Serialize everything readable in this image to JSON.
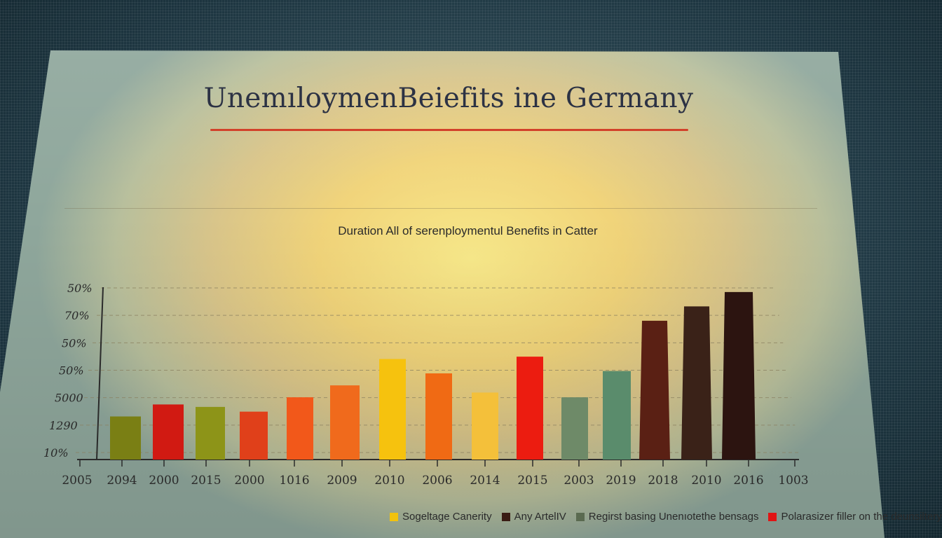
{
  "chart_data": {
    "type": "bar",
    "title": "UnemıloymenBeiefits ine Germany",
    "subtitle": "Duration All of serenploymentul Benefits in Catter",
    "y_tick_labels": [
      "50%",
      "70%",
      "50%",
      "50%",
      "5000",
      "1290",
      "10%"
    ],
    "x_axis_labels": [
      "2005",
      "2094",
      "2000",
      "2015",
      "2000",
      "1016",
      "2009",
      "2010",
      "2006",
      "2014",
      "2015",
      "2003",
      "2019",
      "2018",
      "2010",
      "2016",
      "1003"
    ],
    "categories": [
      "2094",
      "2000",
      "2015",
      "2000",
      "1016",
      "2009",
      "2010",
      "2006",
      "2014",
      "2015",
      "2003",
      "2019",
      "2018",
      "2010",
      "2016"
    ],
    "values": [
      18,
      23,
      22,
      20,
      26,
      31,
      42,
      36,
      28,
      43,
      26,
      37,
      58,
      64,
      70
    ],
    "bar_colors": [
      "#7a7f14",
      "#d11a12",
      "#8d9418",
      "#e0401a",
      "#f2581a",
      "#f06a1c",
      "#f6c20e",
      "#f06a14",
      "#f4c03a",
      "#ec1c10",
      "#6e8a68",
      "#5a8c6c",
      "#5a2014",
      "#3a2218",
      "#2c1410"
    ],
    "ylim": [
      0,
      72
    ],
    "grid": true,
    "legend_position": "bottom-right",
    "legend": [
      {
        "label": "Sogeltage Canerity",
        "color": "#f2c20e"
      },
      {
        "label": "Any ArtelIV",
        "color": "#3a1c14"
      },
      {
        "label": "Regirst basing Unenıotethe bensags",
        "color": "#5a6a50"
      },
      {
        "label": "Polarasizer filler on the deunsiltery",
        "color": "#e01414"
      }
    ]
  },
  "colors": {
    "title": "#2c3244",
    "underline": "#d2412a",
    "grid": "#8a8060",
    "axis": "#2a2a2a"
  }
}
